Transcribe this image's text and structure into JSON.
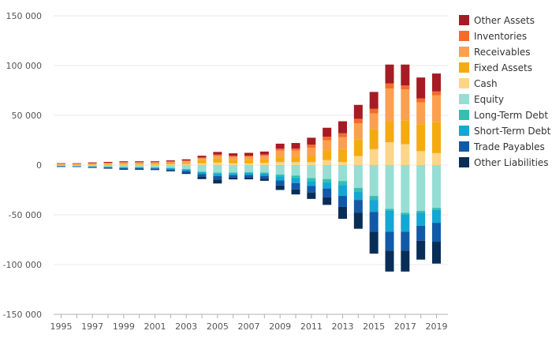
{
  "chart_data": {
    "type": "bar",
    "stacked": true,
    "ylim": [
      -150000,
      150000
    ],
    "yticks": [
      150000,
      100000,
      50000,
      0,
      -50000,
      -100000,
      -150000
    ],
    "ytick_labels": [
      "150 000",
      "100 000",
      "50 000",
      "0",
      "-50 000",
      "-100 000",
      "-150 000"
    ],
    "categories": [
      "1995",
      "1996",
      "1997",
      "1998",
      "1999",
      "2000",
      "2001",
      "2002",
      "2003",
      "2004",
      "2005",
      "2006",
      "2007",
      "2008",
      "2009",
      "2010",
      "2011",
      "2012",
      "2013",
      "2014",
      "2015",
      "2016",
      "2017",
      "2018",
      "2019"
    ],
    "xtick_labels": [
      "1995",
      "1997",
      "1999",
      "2001",
      "2003",
      "2005",
      "2007",
      "2009",
      "2011",
      "2013",
      "2015",
      "2017",
      "2019"
    ],
    "grid": true,
    "legend_position": "right",
    "assets": [
      {
        "name": "Other Assets",
        "color": "#a51c24",
        "values": [
          500,
          500,
          700,
          800,
          900,
          900,
          900,
          1000,
          1200,
          1800,
          2500,
          2500,
          2800,
          3000,
          5000,
          5500,
          7000,
          9000,
          12000,
          14000,
          17000,
          19000,
          21000,
          21000,
          18000
        ]
      },
      {
        "name": "Inventories",
        "color": "#f46b2d",
        "values": [
          200,
          200,
          300,
          300,
          400,
          400,
          400,
          500,
          600,
          800,
          1200,
          1100,
          1200,
          1300,
          2000,
          2200,
          3000,
          3500,
          4000,
          4500,
          4500,
          5000,
          4000,
          4000,
          4000
        ]
      },
      {
        "name": "Receivables",
        "color": "#fba050",
        "values": [
          400,
          400,
          500,
          600,
          700,
          700,
          700,
          800,
          1000,
          1800,
          3000,
          3200,
          3300,
          3500,
          6000,
          6500,
          8000,
          10000,
          12000,
          16000,
          16000,
          33000,
          31000,
          22000,
          27000
        ]
      },
      {
        "name": "Fixed Assets",
        "color": "#f4ab12",
        "values": [
          600,
          600,
          900,
          1100,
          1300,
          1300,
          1300,
          1700,
          2000,
          3200,
          4000,
          3200,
          3200,
          3600,
          5500,
          5000,
          6500,
          10000,
          13000,
          17000,
          20000,
          21000,
          24000,
          27000,
          31000
        ]
      },
      {
        "name": "Cash",
        "color": "#fcd588",
        "values": [
          200,
          200,
          300,
          400,
          500,
          500,
          500,
          700,
          1000,
          1800,
          2500,
          1800,
          1800,
          2200,
          3000,
          3000,
          3000,
          5000,
          3000,
          9000,
          16000,
          23000,
          21000,
          14000,
          12000
        ]
      }
    ],
    "liabilities": [
      {
        "name": "Equity",
        "color": "#97ddd4",
        "values": [
          800,
          900,
          1200,
          1500,
          2000,
          2000,
          2200,
          2800,
          4000,
          6500,
          7500,
          7500,
          7000,
          7500,
          9500,
          10500,
          13000,
          14000,
          16000,
          23000,
          31000,
          44000,
          48000,
          46000,
          43000
        ]
      },
      {
        "name": "Long-Term Debt",
        "color": "#35bfb0",
        "values": [
          100,
          100,
          200,
          200,
          300,
          300,
          300,
          300,
          400,
          600,
          1000,
          800,
          800,
          900,
          2000,
          2500,
          3000,
          3500,
          4000,
          4000,
          4000,
          2000,
          2000,
          2000,
          2000
        ]
      },
      {
        "name": "Short-Term Debt",
        "color": "#13a7d4",
        "values": [
          300,
          300,
          500,
          700,
          900,
          900,
          900,
          1100,
          1500,
          2000,
          2500,
          1800,
          2200,
          2400,
          4000,
          5000,
          5000,
          6000,
          11000,
          8000,
          12000,
          21000,
          17000,
          13000,
          13000
        ]
      },
      {
        "name": "Trade Payables",
        "color": "#1259a8",
        "values": [
          400,
          400,
          600,
          700,
          900,
          900,
          900,
          1200,
          1700,
          2500,
          3500,
          2500,
          2500,
          2800,
          5000,
          6500,
          6500,
          9000,
          11000,
          13000,
          20000,
          19000,
          19000,
          15000,
          19000
        ]
      },
      {
        "name": "Other Liabilities",
        "color": "#082e57",
        "values": [
          300,
          300,
          400,
          500,
          700,
          700,
          700,
          900,
          1300,
          2500,
          4000,
          1800,
          1800,
          2200,
          4500,
          5000,
          6500,
          7500,
          12000,
          16000,
          22000,
          21000,
          21000,
          19000,
          22000
        ]
      }
    ]
  }
}
